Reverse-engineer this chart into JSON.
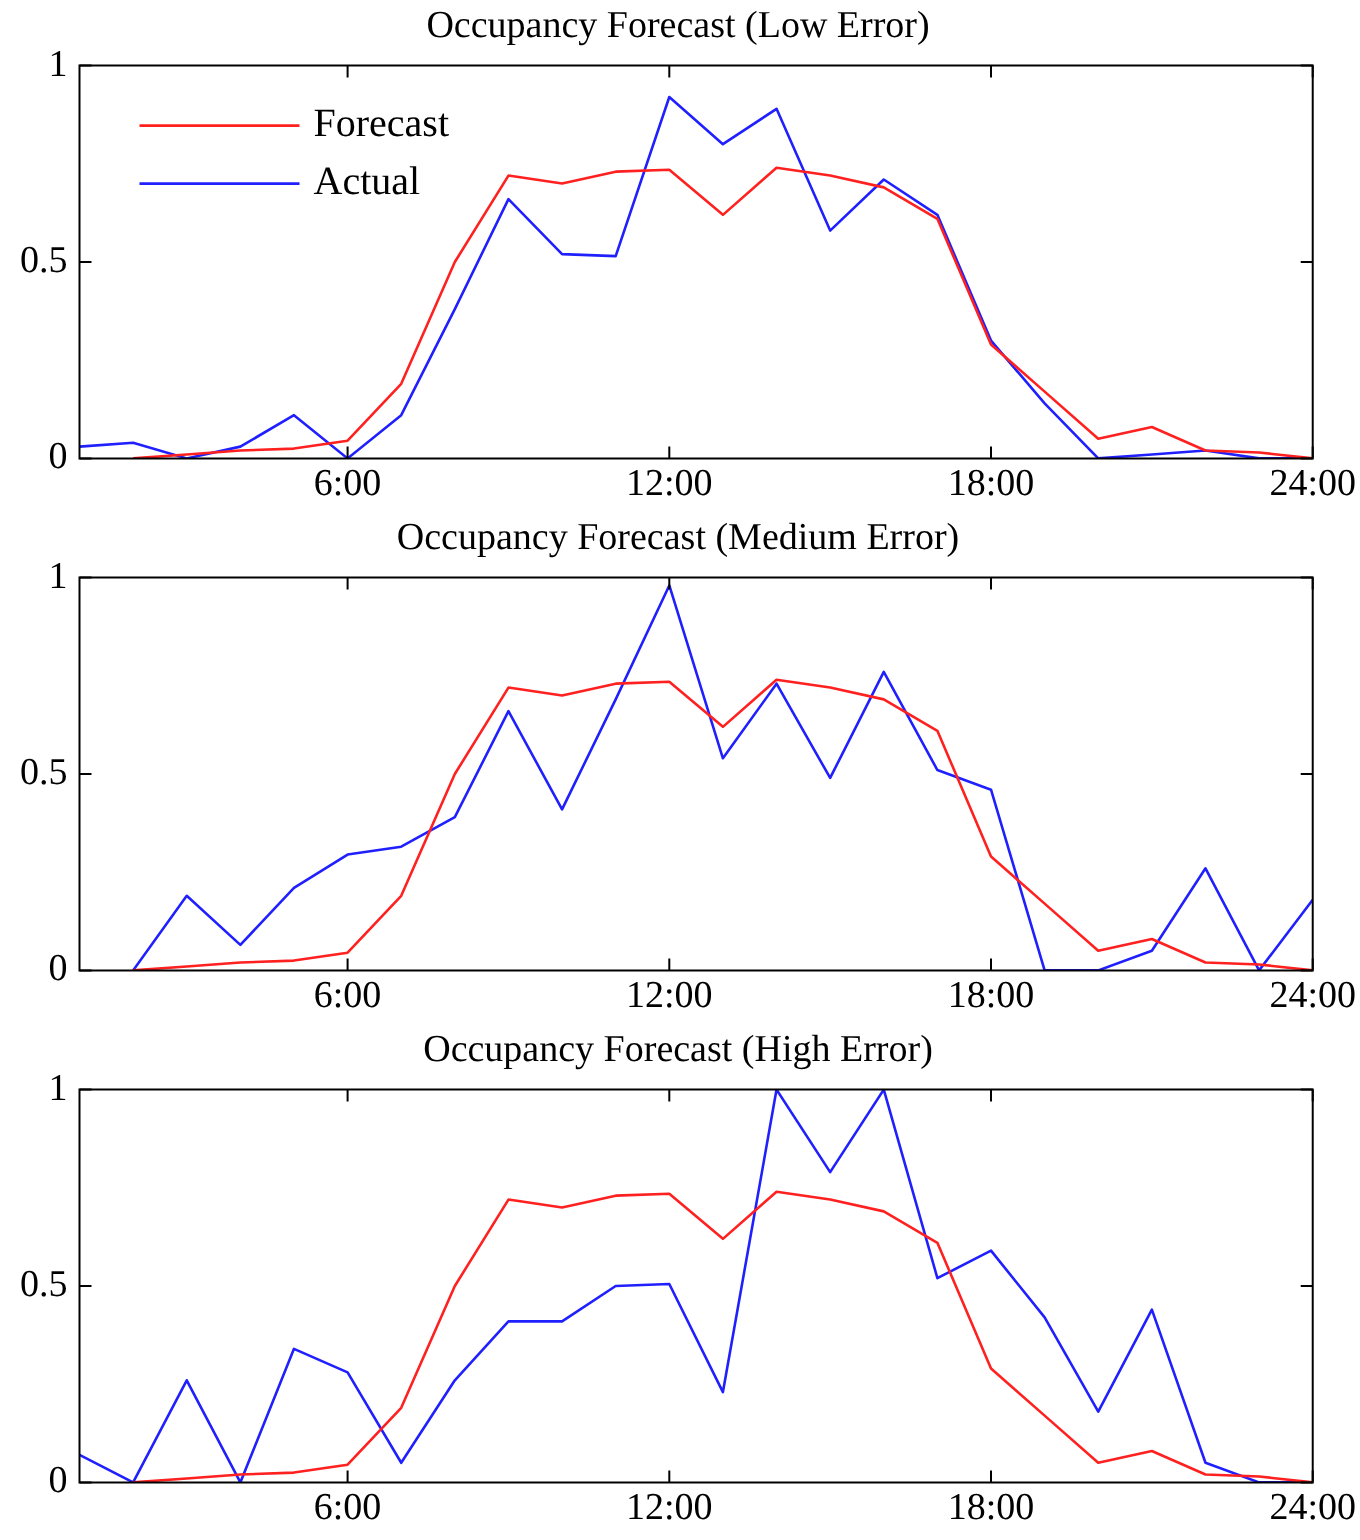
{
  "chart_data": [
    {
      "type": "line",
      "title": "Occupancy Forecast (Low Error)",
      "x": [
        1,
        2,
        3,
        4,
        5,
        6,
        7,
        8,
        9,
        10,
        11,
        12,
        13,
        14,
        15,
        16,
        17,
        18,
        19,
        20,
        21,
        22,
        23,
        24
      ],
      "xlim": [
        1,
        24
      ],
      "xticks": [
        {
          "value": 6,
          "label": "6:00"
        },
        {
          "value": 12,
          "label": "12:00"
        },
        {
          "value": 18,
          "label": "18:00"
        },
        {
          "value": 24,
          "label": "24:00"
        }
      ],
      "ylim": [
        0,
        1
      ],
      "yticks": [
        0,
        0.5,
        1
      ],
      "grid": false,
      "legend": "top left",
      "marker": "none",
      "line_style": "solid",
      "series": [
        {
          "name": "Forecast",
          "color": "#ff2020",
          "values": [
            null,
            0,
            0.01,
            0.02,
            0.025,
            0.045,
            0.19,
            0.5,
            0.72,
            0.7,
            0.73,
            0.735,
            0.62,
            0.74,
            0.72,
            0.69,
            0.61,
            0.29,
            0.17,
            0.05,
            0.08,
            0.02,
            0.015,
            0
          ]
        },
        {
          "name": "Actual",
          "color": "#2020ff",
          "values": [
            0.03,
            0.04,
            0,
            0.03,
            0.11,
            0,
            0.11,
            0.38,
            0.66,
            0.52,
            0.515,
            0.92,
            0.8,
            0.89,
            0.58,
            0.71,
            0.62,
            0.3,
            0.14,
            0,
            0.01,
            0.02,
            0,
            0
          ]
        }
      ]
    },
    {
      "type": "line",
      "title": "Occupancy Forecast (Medium Error)",
      "x": [
        2,
        3,
        4,
        5,
        6,
        7,
        8,
        9,
        10,
        11,
        12,
        13,
        14,
        15,
        16,
        17,
        18,
        19,
        20,
        21,
        22,
        23,
        24
      ],
      "xlim": [
        1,
        24
      ],
      "xticks": [
        {
          "value": 6,
          "label": "6:00"
        },
        {
          "value": 12,
          "label": "12:00"
        },
        {
          "value": 18,
          "label": "18:00"
        },
        {
          "value": 24,
          "label": "24:00"
        }
      ],
      "ylim": [
        0,
        1
      ],
      "yticks": [
        0,
        0.5,
        1
      ],
      "grid": false,
      "marker": "none",
      "line_style": "solid",
      "series": [
        {
          "color": "#ff2020",
          "values": [
            0,
            0.01,
            0.02,
            0.025,
            0.045,
            0.19,
            0.5,
            0.72,
            0.7,
            0.73,
            0.735,
            0.62,
            0.74,
            0.72,
            0.69,
            0.61,
            0.29,
            0.17,
            0.05,
            0.08,
            0.02,
            0.015,
            0
          ]
        },
        {
          "color": "#2020ff",
          "values": [
            0,
            0.19,
            0.065,
            0.21,
            0.295,
            0.315,
            0.39,
            0.66,
            0.41,
            0.69,
            0.98,
            0.54,
            0.73,
            0.49,
            0.76,
            0.51,
            0.46,
            0,
            0,
            0.05,
            0.26,
            0,
            0.18
          ]
        }
      ]
    },
    {
      "type": "line",
      "title": "Occupancy Forecast (High Error)",
      "x": [
        1,
        2,
        3,
        4,
        5,
        6,
        7,
        8,
        9,
        10,
        11,
        12,
        13,
        14,
        15,
        16,
        17,
        18,
        19,
        20,
        21,
        22,
        23,
        24
      ],
      "xlim": [
        1,
        24
      ],
      "xticks": [
        {
          "value": 6,
          "label": "6:00"
        },
        {
          "value": 12,
          "label": "12:00"
        },
        {
          "value": 18,
          "label": "18:00"
        },
        {
          "value": 24,
          "label": "24:00"
        }
      ],
      "ylim": [
        0,
        1
      ],
      "yticks": [
        0,
        0.5,
        1
      ],
      "grid": false,
      "marker": "none",
      "line_style": "solid",
      "series": [
        {
          "color": "#ff2020",
          "values": [
            null,
            0,
            0.01,
            0.02,
            0.025,
            0.045,
            0.19,
            0.5,
            0.72,
            0.7,
            0.73,
            0.735,
            0.62,
            0.74,
            0.72,
            0.69,
            0.61,
            0.29,
            0.17,
            0.05,
            0.08,
            0.02,
            0.015,
            0
          ]
        },
        {
          "color": "#2020ff",
          "values": [
            0.07,
            0,
            0.26,
            0,
            0.34,
            0.28,
            0.05,
            0.26,
            0.41,
            0.41,
            0.5,
            0.505,
            0.23,
            1,
            0.79,
            1,
            0.52,
            0.59,
            0.42,
            0.18,
            0.44,
            0.05,
            0,
            0
          ]
        }
      ]
    }
  ]
}
